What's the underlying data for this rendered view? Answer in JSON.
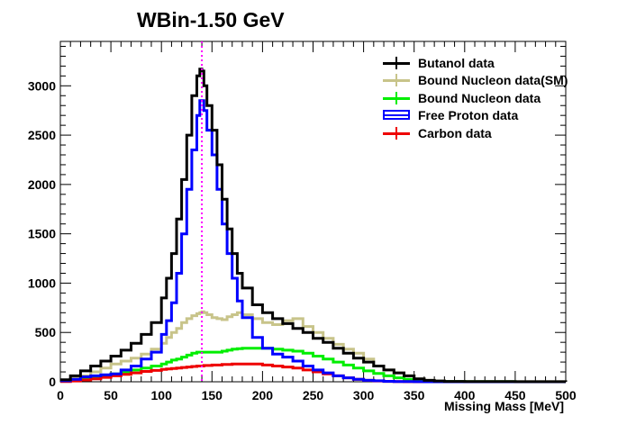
{
  "chart_data": {
    "type": "line",
    "title": "WBin-1.50 GeV",
    "xlabel": "Missing Mass [MeV]",
    "ylabel": "",
    "xlim": [
      0,
      500
    ],
    "ylim": [
      0,
      3450
    ],
    "x_ticks": [
      0,
      50,
      100,
      150,
      200,
      250,
      300,
      350,
      400,
      450,
      500
    ],
    "y_ticks": [
      0,
      500,
      1000,
      1500,
      2000,
      2500,
      3000
    ],
    "marker_line": {
      "x": 140,
      "color": "#ff00ff",
      "style": "dotted"
    },
    "grid": false,
    "legend_position": "top-right",
    "x": [
      0,
      10,
      20,
      30,
      40,
      50,
      60,
      70,
      80,
      90,
      100,
      105,
      110,
      115,
      120,
      125,
      130,
      135,
      138,
      140,
      142,
      145,
      150,
      155,
      160,
      165,
      170,
      175,
      180,
      190,
      200,
      210,
      220,
      230,
      240,
      250,
      260,
      270,
      280,
      290,
      300,
      310,
      320,
      330,
      340,
      350,
      360,
      370,
      380,
      400,
      450,
      500
    ],
    "series": [
      {
        "name": "Butanol data",
        "color": "#000000",
        "legend_style": "errorbar",
        "values": [
          20,
          60,
          110,
          160,
          210,
          260,
          320,
          390,
          480,
          600,
          850,
          1050,
          1300,
          1650,
          2050,
          2500,
          2900,
          3100,
          3170,
          3150,
          3000,
          2800,
          2550,
          2200,
          1850,
          1550,
          1300,
          1100,
          950,
          780,
          700,
          640,
          590,
          540,
          500,
          440,
          400,
          340,
          290,
          240,
          200,
          160,
          120,
          90,
          60,
          30,
          15,
          8,
          4,
          2,
          1,
          0
        ]
      },
      {
        "name": "Bound Nucleon data(SM)",
        "color": "#c8c48a",
        "legend_style": "errorbar",
        "values": [
          15,
          35,
          60,
          100,
          140,
          180,
          210,
          240,
          280,
          330,
          390,
          450,
          500,
          540,
          600,
          640,
          670,
          690,
          700,
          710,
          700,
          680,
          650,
          640,
          630,
          660,
          680,
          700,
          680,
          640,
          600,
          580,
          620,
          640,
          560,
          500,
          440,
          380,
          330,
          290,
          230,
          160,
          120,
          90,
          60,
          30,
          15,
          8,
          4,
          2,
          1,
          0
        ]
      },
      {
        "name": "Bound Nucleon data",
        "color": "#00ee00",
        "legend_style": "errorbar",
        "values": [
          5,
          15,
          30,
          45,
          60,
          80,
          100,
          120,
          140,
          160,
          180,
          200,
          220,
          230,
          250,
          270,
          290,
          300,
          300,
          300,
          300,
          300,
          300,
          300,
          310,
          320,
          330,
          335,
          340,
          340,
          340,
          330,
          320,
          310,
          290,
          260,
          230,
          200,
          170,
          140,
          110,
          85,
          60,
          40,
          25,
          15,
          8,
          4,
          2,
          1,
          0,
          0
        ]
      },
      {
        "name": "Free Proton data",
        "color": "#0000ff",
        "legend_style": "box",
        "values": [
          10,
          25,
          50,
          60,
          70,
          80,
          120,
          160,
          230,
          300,
          480,
          620,
          800,
          1100,
          1500,
          1950,
          2350,
          2700,
          2850,
          2850,
          2750,
          2550,
          2300,
          1950,
          1600,
          1300,
          1050,
          820,
          650,
          450,
          340,
          280,
          250,
          210,
          160,
          120,
          90,
          60,
          40,
          25,
          15,
          10,
          5,
          3,
          2,
          1,
          0,
          0,
          0,
          0,
          0,
          0
        ]
      },
      {
        "name": "Carbon data",
        "color": "#ee0000",
        "legend_style": "errorbar",
        "values": [
          2,
          8,
          18,
          30,
          45,
          60,
          75,
          90,
          105,
          115,
          125,
          130,
          135,
          140,
          145,
          150,
          155,
          160,
          160,
          160,
          165,
          165,
          170,
          170,
          175,
          175,
          180,
          180,
          180,
          180,
          170,
          160,
          150,
          140,
          120,
          100,
          80,
          60,
          40,
          25,
          15,
          8,
          4,
          2,
          1,
          0,
          0,
          0,
          0,
          0,
          0,
          0
        ]
      }
    ]
  }
}
